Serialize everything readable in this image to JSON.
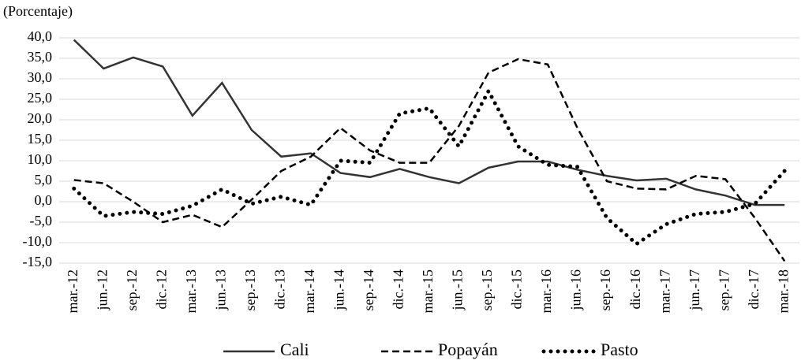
{
  "chart_data": {
    "type": "line",
    "y_axis_label": "(Porcentaje)",
    "categories": [
      "mar.-12",
      "jun.-12",
      "sep.-12",
      "dic.-12",
      "mar.-13",
      "jun.-13",
      "sep.-13",
      "dic.-13",
      "mar.-14",
      "jun.-14",
      "sep.-14",
      "dic.-14",
      "mar.-15",
      "jun.-15",
      "sep.-15",
      "dic.-15",
      "mar.-16",
      "jun.-16",
      "sep.-16",
      "dic.-16",
      "mar.-17",
      "jun.-17",
      "sep.-17",
      "dic.-17",
      "mar.-18"
    ],
    "series": [
      {
        "name": "Cali",
        "color": "#333333",
        "dash": "solid",
        "values": [
          39.5,
          32.5,
          35.2,
          33,
          21,
          29,
          17.5,
          11,
          11.8,
          7,
          6,
          8,
          6,
          4.5,
          8.3,
          9.8,
          9.8,
          7.8,
          6.3,
          5.2,
          5.6,
          3,
          1.5,
          -0.8,
          -0.8
        ]
      },
      {
        "name": "Popayán",
        "color": "#000000",
        "dash": "dashed",
        "values": [
          5.3,
          4.5,
          0,
          -5,
          -3.2,
          -6.2,
          0.5,
          7.5,
          11,
          18,
          12.5,
          9.5,
          9.5,
          18.5,
          31.5,
          34.8,
          33.5,
          18,
          5,
          3.2,
          3,
          6.3,
          5.5,
          -4,
          -14.5
        ]
      },
      {
        "name": "Pasto",
        "color": "#000000",
        "dash": "dotted",
        "values": [
          3.2,
          -3.5,
          -2.5,
          -3,
          -1,
          3,
          -0.5,
          1.2,
          -0.8,
          10,
          9.5,
          21.5,
          22.8,
          13.5,
          27,
          13.5,
          9,
          8.5,
          -4,
          -10.3,
          -5.5,
          -3,
          -2.5,
          -0.5,
          7.5
        ]
      }
    ],
    "ylim": [
      -15,
      40
    ],
    "yticks": [
      {
        "value": -15,
        "label": "-15,0"
      },
      {
        "value": -10,
        "label": "-10,0"
      },
      {
        "value": -5,
        "label": "-5,0"
      },
      {
        "value": 0,
        "label": "0,0"
      },
      {
        "value": 5,
        "label": "5,0"
      },
      {
        "value": 10,
        "label": "10,0"
      },
      {
        "value": 15,
        "label": "15,0"
      },
      {
        "value": 20,
        "label": "20,0"
      },
      {
        "value": 25,
        "label": "25,0"
      },
      {
        "value": 30,
        "label": "30,0"
      },
      {
        "value": 35,
        "label": "35,0"
      },
      {
        "value": 40,
        "label": "40,0"
      }
    ],
    "grid": true
  }
}
